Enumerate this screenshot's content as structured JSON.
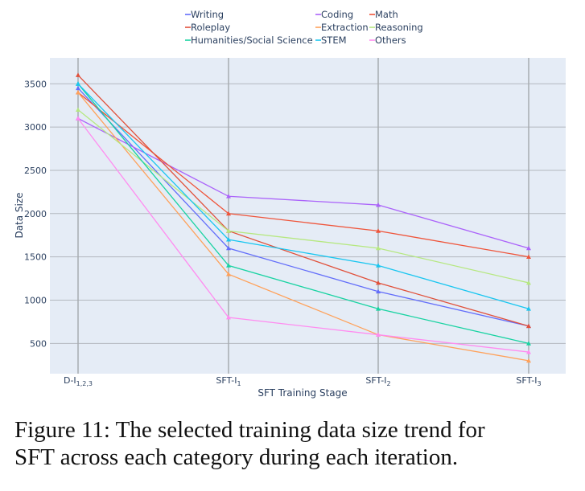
{
  "chart_data": {
    "type": "line",
    "title": "",
    "xlabel": "SFT Training Stage",
    "ylabel": "Data Size",
    "categories": [
      "D-I1,2,3",
      "SFT-I1",
      "SFT-I2",
      "SFT-I3"
    ],
    "category_labels": [
      {
        "base": "D-I",
        "sub": "1,2,3"
      },
      {
        "base": "SFT-I",
        "sub": "1"
      },
      {
        "base": "SFT-I",
        "sub": "2"
      },
      {
        "base": "SFT-I",
        "sub": "3"
      }
    ],
    "yticks": [
      500,
      1000,
      1500,
      2000,
      2500,
      3000,
      3500
    ],
    "ylim": [
      150,
      3800
    ],
    "grid": true,
    "legend_position": "top",
    "series": [
      {
        "name": "Writing",
        "color": "#636efa",
        "values": [
          3450,
          1600,
          1100,
          700
        ]
      },
      {
        "name": "Coding",
        "color": "#ab63fa",
        "values": [
          3100,
          2200,
          2100,
          1600
        ]
      },
      {
        "name": "Math",
        "color": "#ef553b",
        "values": [
          3400,
          2000,
          1800,
          1500
        ]
      },
      {
        "name": "Roleplay",
        "color": "#e1503a",
        "values": [
          3600,
          1800,
          1200,
          700
        ]
      },
      {
        "name": "Extraction",
        "color": "#ffa15a",
        "values": [
          3400,
          1300,
          600,
          300
        ]
      },
      {
        "name": "Reasoning",
        "color": "#b6e880",
        "values": [
          3200,
          1800,
          1600,
          1200
        ]
      },
      {
        "name": "Humanities/Social Science",
        "color": "#19d3a2",
        "values": [
          3500,
          1400,
          900,
          500
        ]
      },
      {
        "name": "STEM",
        "color": "#19c6f0",
        "values": [
          3500,
          1700,
          1400,
          900
        ]
      },
      {
        "name": "Others",
        "color": "#ff8cf0",
        "values": [
          3100,
          800,
          600,
          400
        ]
      }
    ]
  },
  "caption": {
    "line1": "Figure 11: The selected training data size trend for",
    "line2": "SFT across each category during each iteration."
  }
}
